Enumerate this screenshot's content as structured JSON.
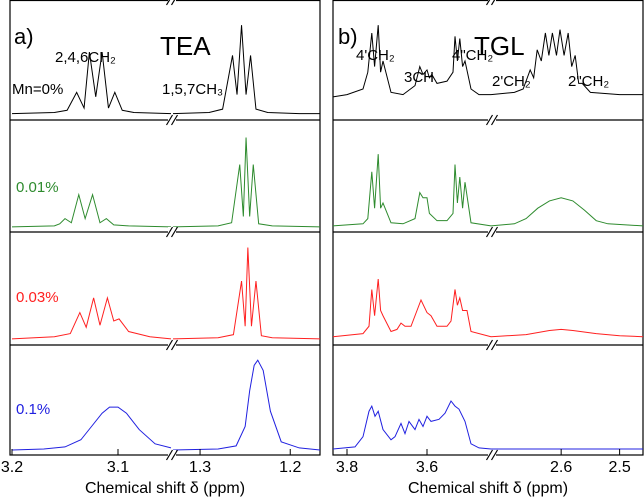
{
  "chart_data": [
    {
      "type": "line",
      "panel_label": "a)",
      "title": "TEA",
      "xlabel": "Chemical shift δ (ppm)",
      "ylim": [
        0,
        1
      ],
      "annotations": [
        "2,4,6CH₂",
        "1,5,7CH₃"
      ],
      "segments": [
        {
          "xlim": [
            3.2,
            3.05
          ],
          "xticks": [
            3.2,
            3.1
          ]
        },
        {
          "xlim": [
            1.33,
            1.167
          ],
          "xticks": [
            1.3,
            1.2
          ]
        }
      ],
      "series": [
        {
          "name": "Mn=0%",
          "color": "#000000",
          "segments": [
            {
              "x": [
                3.2,
                3.16,
                3.148,
                3.139,
                3.132,
                3.127,
                3.121,
                3.115,
                3.109,
                3.103,
                3.096,
                3.085,
                3.05
              ],
              "y": [
                0.03,
                0.04,
                0.06,
                0.22,
                0.08,
                0.58,
                0.18,
                0.58,
                0.08,
                0.22,
                0.06,
                0.04,
                0.03
              ]
            },
            {
              "x": [
                1.33,
                1.29,
                1.275,
                1.264,
                1.259,
                1.254,
                1.249,
                1.244,
                1.238,
                1.225,
                1.19,
                1.167
              ],
              "y": [
                0.03,
                0.04,
                0.07,
                0.55,
                0.2,
                0.82,
                0.2,
                0.55,
                0.07,
                0.04,
                0.03,
                0.03
              ]
            }
          ]
        },
        {
          "name": "0.01%",
          "color": "#2e8b2e",
          "segments": [
            {
              "x": [
                3.2,
                3.16,
                3.155,
                3.15,
                3.144,
                3.137,
                3.131,
                3.124,
                3.117,
                3.111,
                3.104,
                3.09,
                3.05
              ],
              "y": [
                0.02,
                0.03,
                0.05,
                0.1,
                0.06,
                0.33,
                0.1,
                0.33,
                0.06,
                0.1,
                0.04,
                0.03,
                0.02
              ]
            },
            {
              "x": [
                1.33,
                1.28,
                1.265,
                1.256,
                1.252,
                1.249,
                1.245,
                1.241,
                1.235,
                1.22,
                1.167
              ],
              "y": [
                0.02,
                0.03,
                0.06,
                0.62,
                0.12,
                0.88,
                0.12,
                0.62,
                0.05,
                0.03,
                0.02
              ]
            }
          ]
        },
        {
          "name": "0.03%",
          "color": "#ff2020",
          "segments": [
            {
              "x": [
                3.2,
                3.16,
                3.145,
                3.136,
                3.13,
                3.123,
                3.117,
                3.11,
                3.104,
                3.099,
                3.09,
                3.07,
                3.05
              ],
              "y": [
                0.03,
                0.05,
                0.08,
                0.28,
                0.14,
                0.42,
                0.16,
                0.42,
                0.2,
                0.22,
                0.1,
                0.05,
                0.03
              ]
            },
            {
              "x": [
                1.33,
                1.28,
                1.263,
                1.254,
                1.25,
                1.247,
                1.243,
                1.238,
                1.232,
                1.22,
                1.167
              ],
              "y": [
                0.03,
                0.04,
                0.07,
                0.58,
                0.15,
                0.9,
                0.15,
                0.58,
                0.06,
                0.04,
                0.03
              ]
            }
          ]
        },
        {
          "name": "0.1%",
          "color": "#2020e0",
          "segments": [
            {
              "x": [
                3.2,
                3.17,
                3.15,
                3.135,
                3.125,
                3.115,
                3.108,
                3.1,
                3.092,
                3.08,
                3.065,
                3.05
              ],
              "y": [
                0.02,
                0.03,
                0.05,
                0.12,
                0.25,
                0.38,
                0.44,
                0.44,
                0.38,
                0.22,
                0.08,
                0.04
              ]
            },
            {
              "x": [
                1.33,
                1.28,
                1.26,
                1.25,
                1.245,
                1.24,
                1.236,
                1.23,
                1.222,
                1.21,
                1.19,
                1.167
              ],
              "y": [
                0.02,
                0.03,
                0.06,
                0.25,
                0.6,
                0.85,
                0.9,
                0.8,
                0.4,
                0.1,
                0.04,
                0.02
              ]
            }
          ]
        }
      ]
    },
    {
      "type": "line",
      "panel_label": "b)",
      "title": "TGL",
      "xlabel": "Chemical shift δ (ppm)",
      "ylim": [
        0,
        1
      ],
      "annotations": [
        "4'CH₂",
        "3CH",
        "4\"CH₂",
        "2'CH₂",
        "2\"CH₂"
      ],
      "segments": [
        {
          "xlim": [
            3.835,
            3.44
          ],
          "xticks": [
            3.8,
            3.6
          ]
        },
        {
          "xlim": [
            2.72,
            2.46
          ],
          "xticks": [
            2.6,
            2.5
          ]
        }
      ],
      "series": [
        {
          "color": "#000000",
          "segments": [
            {
              "x": [
                3.835,
                3.8,
                3.76,
                3.748,
                3.738,
                3.731,
                3.722,
                3.716,
                3.71,
                3.69,
                3.66,
                3.63,
                3.618,
                3.61,
                3.6,
                3.594,
                3.588,
                3.575,
                3.55,
                3.535,
                3.53,
                3.524,
                3.518,
                3.511,
                3.505,
                3.49,
                3.47,
                3.44
              ],
              "y": [
                0.18,
                0.2,
                0.25,
                0.4,
                0.75,
                0.45,
                0.82,
                0.4,
                0.5,
                0.22,
                0.2,
                0.28,
                0.45,
                0.38,
                0.42,
                0.35,
                0.38,
                0.3,
                0.32,
                0.4,
                0.72,
                0.5,
                0.7,
                0.45,
                0.5,
                0.25,
                0.2,
                0.2
              ]
            },
            {
              "x": [
                2.72,
                2.68,
                2.665,
                2.653,
                2.647,
                2.641,
                2.634,
                2.627,
                2.621,
                2.615,
                2.608,
                2.602,
                2.595,
                2.588,
                2.582,
                2.576,
                2.57,
                2.564,
                2.55,
                2.5,
                2.46
              ],
              "y": [
                0.2,
                0.22,
                0.25,
                0.42,
                0.35,
                0.6,
                0.5,
                0.75,
                0.55,
                0.75,
                0.55,
                0.78,
                0.55,
                0.75,
                0.45,
                0.55,
                0.3,
                0.3,
                0.22,
                0.2,
                0.2
              ]
            }
          ]
        },
        {
          "color": "#2e8b2e",
          "segments": [
            {
              "x": [
                3.835,
                3.76,
                3.748,
                3.738,
                3.731,
                3.722,
                3.716,
                3.71,
                3.69,
                3.66,
                3.63,
                3.618,
                3.61,
                3.6,
                3.594,
                3.575,
                3.55,
                3.535,
                3.53,
                3.524,
                3.518,
                3.511,
                3.505,
                3.49,
                3.44
              ],
              "y": [
                0.03,
                0.05,
                0.1,
                0.55,
                0.2,
                0.72,
                0.2,
                0.25,
                0.06,
                0.05,
                0.1,
                0.35,
                0.3,
                0.3,
                0.15,
                0.08,
                0.08,
                0.15,
                0.62,
                0.25,
                0.5,
                0.2,
                0.45,
                0.06,
                0.03
              ]
            },
            {
              "x": [
                2.72,
                2.68,
                2.66,
                2.64,
                2.62,
                2.6,
                2.58,
                2.56,
                2.54,
                2.52,
                2.46
              ],
              "y": [
                0.03,
                0.05,
                0.1,
                0.2,
                0.27,
                0.3,
                0.27,
                0.18,
                0.08,
                0.05,
                0.03
              ]
            }
          ]
        },
        {
          "color": "#ff2020",
          "segments": [
            {
              "x": [
                3.835,
                3.76,
                3.745,
                3.738,
                3.731,
                3.722,
                3.716,
                3.71,
                3.69,
                3.675,
                3.665,
                3.655,
                3.64,
                3.625,
                3.615,
                3.6,
                3.59,
                3.575,
                3.55,
                3.54,
                3.53,
                3.524,
                3.518,
                3.511,
                3.5,
                3.49,
                3.44
              ],
              "y": [
                0.05,
                0.08,
                0.15,
                0.5,
                0.25,
                0.6,
                0.3,
                0.25,
                0.1,
                0.12,
                0.18,
                0.15,
                0.15,
                0.3,
                0.4,
                0.28,
                0.25,
                0.15,
                0.15,
                0.2,
                0.5,
                0.35,
                0.42,
                0.3,
                0.3,
                0.1,
                0.05
              ]
            },
            {
              "x": [
                2.72,
                2.66,
                2.62,
                2.6,
                2.58,
                2.54,
                2.5,
                2.46
              ],
              "y": [
                0.05,
                0.07,
                0.11,
                0.12,
                0.11,
                0.08,
                0.06,
                0.05
              ]
            }
          ]
        },
        {
          "color": "#2020e0",
          "segments": [
            {
              "x": [
                3.835,
                3.78,
                3.76,
                3.745,
                3.738,
                3.73,
                3.722,
                3.71,
                3.69,
                3.68,
                3.665,
                3.655,
                3.645,
                3.63,
                3.62,
                3.61,
                3.6,
                3.59,
                3.57,
                3.555,
                3.54,
                3.53,
                3.52,
                3.505,
                3.49,
                3.47,
                3.44
              ],
              "y": [
                0.03,
                0.05,
                0.15,
                0.4,
                0.45,
                0.35,
                0.4,
                0.22,
                0.12,
                0.15,
                0.28,
                0.18,
                0.3,
                0.22,
                0.32,
                0.25,
                0.35,
                0.3,
                0.32,
                0.38,
                0.5,
                0.45,
                0.42,
                0.3,
                0.08,
                0.04,
                0.03
              ]
            },
            {
              "x": [
                2.72,
                2.46
              ],
              "y": [
                0.03,
                0.03
              ]
            }
          ]
        }
      ]
    }
  ]
}
